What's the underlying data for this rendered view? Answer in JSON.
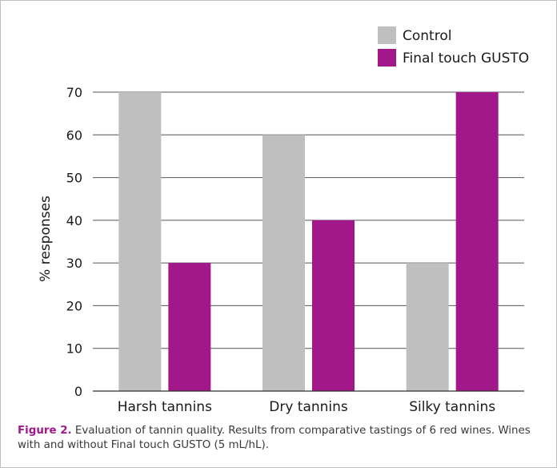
{
  "chart_data": {
    "type": "bar",
    "title": "",
    "xlabel": "",
    "ylabel": "% responses",
    "ylim": [
      0,
      70
    ],
    "yticks": [
      0,
      10,
      20,
      30,
      40,
      50,
      60,
      70
    ],
    "grid": true,
    "legend_position": "top-right",
    "categories": [
      "Harsh tannins",
      "Dry tannins",
      "Silky tannins"
    ],
    "series": [
      {
        "name": "Control",
        "color": "#c0bfc0",
        "values": [
          70,
          60,
          30
        ]
      },
      {
        "name": "Final touch GUSTO",
        "color": "#a2188a",
        "values": [
          30,
          40,
          70
        ]
      }
    ]
  },
  "caption": {
    "figure_number": "Figure 2.",
    "text": " Evaluation of tannin quality. Results from comparative tastings of 6 red wines. Wines with and without Final touch GUSTO (5 mL/hL)."
  }
}
